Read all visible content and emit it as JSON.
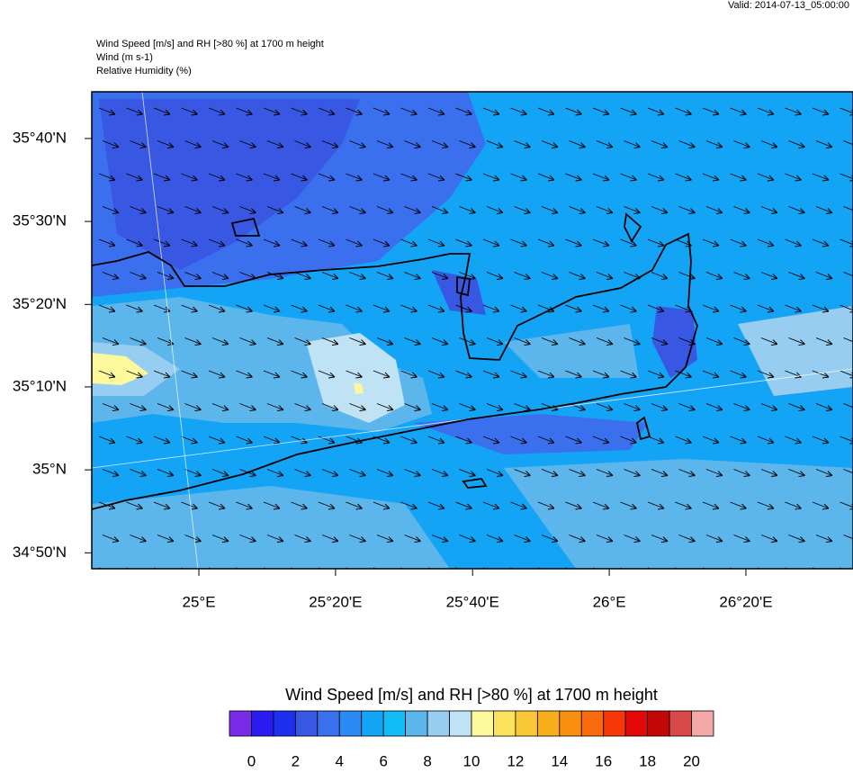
{
  "valid": "Valid: 2014-07-13_05:00:00",
  "header": [
    "Wind Speed [m/s] and RH [>80 %] at 1700 m height",
    "Wind   (m s-1)",
    "Relative Humidity   (%)"
  ],
  "map": {
    "xlim": [
      24.739,
      26.594
    ],
    "ylim": [
      34.801,
      35.761
    ],
    "xticks": [
      {
        "value": 25,
        "label": "25°E"
      },
      {
        "value": 25.333,
        "label": "25°20'E"
      },
      {
        "value": 25.667,
        "label": "25°40'E"
      },
      {
        "value": 26,
        "label": "26°E"
      },
      {
        "value": 26.333,
        "label": "26°20'E"
      }
    ],
    "yticks": [
      {
        "value": 35.667,
        "label": "35°40'N"
      },
      {
        "value": 35.5,
        "label": "35°30'N"
      },
      {
        "value": 35.333,
        "label": "35°20'N"
      },
      {
        "value": 35.167,
        "label": "35°10'N"
      },
      {
        "value": 35,
        "label": "35°N"
      },
      {
        "value": 34.833,
        "label": "34°50'N"
      }
    ]
  },
  "colorbar": {
    "title": "Wind Speed [m/s] and RH [>80 %] at 1700 m height",
    "colors": [
      "#7b2ae6",
      "#2c1cf2",
      "#1e30ee",
      "#3858e4",
      "#3a70ee",
      "#2a8af4",
      "#14a4f6",
      "#12bcf6",
      "#5cb6ec",
      "#96cdf0",
      "#bfe2f4",
      "#fdf89c",
      "#fae25c",
      "#f8c838",
      "#f8ae1c",
      "#f88e0e",
      "#f86a0c",
      "#f63808",
      "#e40808",
      "#c40808",
      "#d84a4a",
      "#f4a8a8"
    ],
    "labels": [
      0,
      2,
      4,
      6,
      8,
      10,
      12,
      14,
      16,
      18,
      20
    ]
  }
}
